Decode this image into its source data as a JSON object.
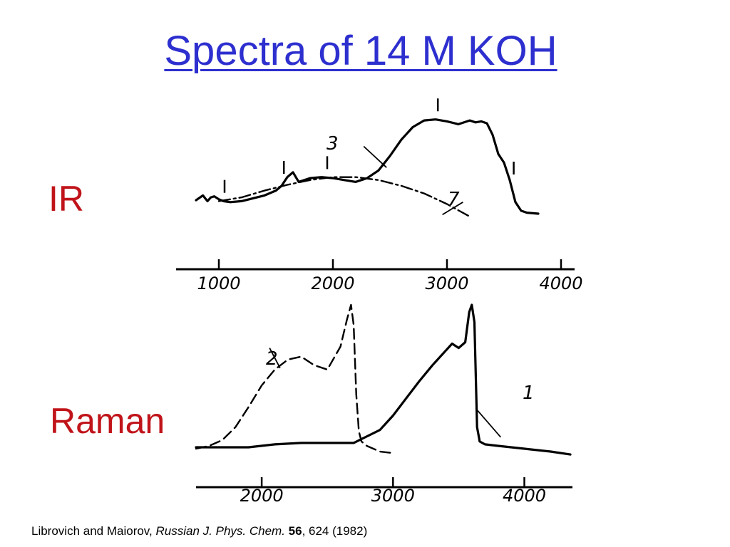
{
  "slide": {
    "title": "Spectra of 14 M KOH",
    "labels": {
      "ir": "IR",
      "raman": "Raman"
    },
    "citation": {
      "authors": "Librovich and Maiorov,",
      "journal": "Russian J. Phys. Chem.",
      "volume": "56",
      "pages_year": ", 624 (1982)"
    }
  },
  "chart_data": [
    {
      "type": "line",
      "name": "IR",
      "xlim": [
        800,
        4100
      ],
      "x_ticks": [
        "1000",
        "2000",
        "3000",
        "4000"
      ],
      "ylim": [
        0,
        1
      ],
      "grid": false,
      "curve_labels": [
        "3",
        "7"
      ],
      "series": [
        {
          "name": "3",
          "style": "solid",
          "x": [
            800,
            860,
            900,
            930,
            960,
            1000,
            1040,
            1100,
            1200,
            1300,
            1400,
            1500,
            1550,
            1600,
            1650,
            1700,
            1750,
            1800,
            1900,
            2000,
            2100,
            2200,
            2300,
            2400,
            2500,
            2600,
            2700,
            2800,
            2900,
            3000,
            3100,
            3200,
            3250,
            3300,
            3350,
            3400,
            3450,
            3500,
            3550,
            3600,
            3650,
            3700,
            3800
          ],
          "y": [
            0.14,
            0.19,
            0.13,
            0.17,
            0.18,
            0.15,
            0.13,
            0.12,
            0.13,
            0.16,
            0.19,
            0.24,
            0.29,
            0.38,
            0.43,
            0.33,
            0.35,
            0.37,
            0.38,
            0.37,
            0.35,
            0.33,
            0.37,
            0.45,
            0.6,
            0.77,
            0.9,
            0.97,
            0.98,
            0.96,
            0.93,
            0.97,
            0.95,
            0.96,
            0.94,
            0.82,
            0.62,
            0.53,
            0.35,
            0.12,
            0.03,
            0.01,
            0.0
          ]
        },
        {
          "name": "7",
          "style": "dash-dot",
          "x": [
            1000,
            1200,
            1400,
            1600,
            1800,
            2000,
            2200,
            2400,
            2600,
            2800,
            3000,
            3200
          ],
          "y": [
            0.13,
            0.17,
            0.24,
            0.3,
            0.35,
            0.38,
            0.38,
            0.35,
            0.29,
            0.21,
            0.1,
            -0.03
          ]
        }
      ],
      "markers_x": [
        1050,
        1570,
        1950,
        2920,
        3560
      ]
    },
    {
      "type": "line",
      "name": "Raman",
      "xlim": [
        1500,
        4350
      ],
      "x_ticks": [
        "2000",
        "3000",
        "4000"
      ],
      "ylim": [
        0,
        1
      ],
      "grid": false,
      "curve_labels": [
        "2",
        "1"
      ],
      "series": [
        {
          "name": "2",
          "style": "dashed",
          "x": [
            1500,
            1600,
            1700,
            1800,
            1900,
            2000,
            2100,
            2200,
            2300,
            2400,
            2500,
            2600,
            2650,
            2680,
            2700,
            2720,
            2740,
            2760,
            2800,
            2900,
            3000
          ],
          "y": [
            0.0,
            0.02,
            0.06,
            0.15,
            0.29,
            0.44,
            0.55,
            0.62,
            0.64,
            0.58,
            0.55,
            0.71,
            0.9,
            1.0,
            0.86,
            0.38,
            0.12,
            0.05,
            0.02,
            -0.02,
            -0.03
          ]
        },
        {
          "name": "1",
          "style": "solid",
          "x": [
            1500,
            1700,
            1900,
            2100,
            2300,
            2500,
            2700,
            2900,
            3000,
            3100,
            3200,
            3300,
            3400,
            3450,
            3500,
            3550,
            3580,
            3600,
            3620,
            3640,
            3660,
            3700,
            3800,
            4000,
            4200,
            4350
          ],
          "y": [
            0.01,
            0.01,
            0.01,
            0.03,
            0.04,
            0.04,
            0.04,
            0.13,
            0.23,
            0.35,
            0.47,
            0.58,
            0.68,
            0.73,
            0.7,
            0.74,
            0.95,
            1.0,
            0.88,
            0.15,
            0.05,
            0.03,
            0.02,
            0.0,
            -0.02,
            -0.04
          ]
        }
      ]
    }
  ]
}
